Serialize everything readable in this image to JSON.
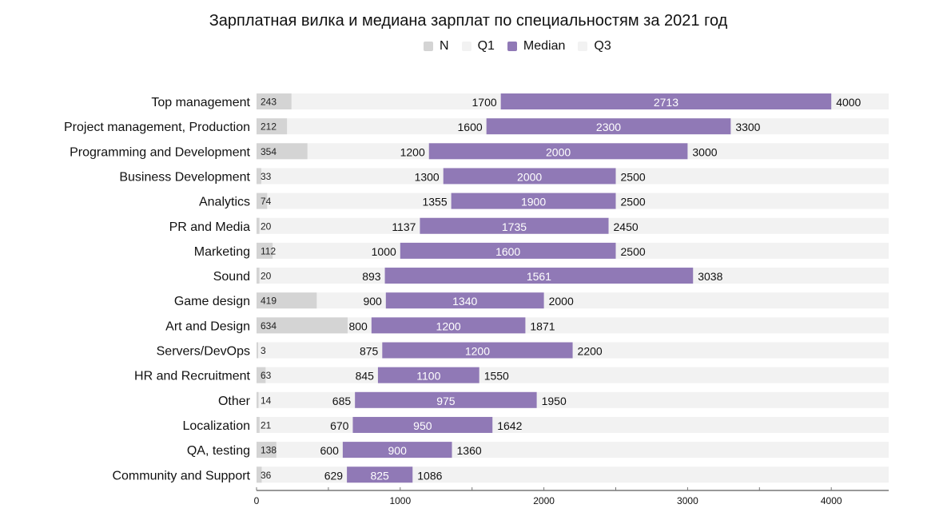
{
  "chart_data": {
    "type": "bar",
    "orientation": "horizontal",
    "title": "Зарплатная вилка и медиана зарплат по специальностям за 2021 год",
    "legend": [
      {
        "name": "N",
        "color": "#d4d4d4"
      },
      {
        "name": "Q1",
        "color": "#f2f2f2"
      },
      {
        "name": "Median",
        "color": "#9079b6"
      },
      {
        "name": "Q3",
        "color": "#f2f2f2"
      }
    ],
    "legend_position": "top-center",
    "categories": [
      "Top management",
      "Project management, Production",
      "Programming and Development",
      "Business Development",
      "Analytics",
      "PR and Media",
      "Marketing",
      "Sound",
      "Game design",
      "Art and Design",
      "Servers/DevOps",
      "HR and Recruitment",
      "Other",
      "Localization",
      "QA, testing",
      "Community and Support"
    ],
    "series": [
      {
        "name": "N",
        "values": [
          243,
          212,
          354,
          33,
          74,
          20,
          112,
          20,
          419,
          634,
          3,
          63,
          14,
          21,
          138,
          36
        ]
      },
      {
        "name": "Q1",
        "values": [
          1700,
          1600,
          1200,
          1300,
          1355,
          1137,
          1000,
          893,
          900,
          800,
          875,
          845,
          685,
          670,
          600,
          629
        ]
      },
      {
        "name": "Median",
        "values": [
          2713,
          2300,
          2000,
          2000,
          1900,
          1735,
          1600,
          1561,
          1340,
          1200,
          1200,
          1100,
          975,
          950,
          900,
          825
        ]
      },
      {
        "name": "Q3",
        "values": [
          4000,
          3300,
          3000,
          2500,
          2500,
          2450,
          2500,
          3038,
          2000,
          1871,
          2200,
          1550,
          1950,
          1642,
          1360,
          1086
        ]
      }
    ],
    "xlim": [
      0,
      4400
    ],
    "xticks": [
      0,
      1000,
      2000,
      3000,
      4000
    ],
    "xlabel": "",
    "ylabel": "",
    "colors": {
      "n_bar": "#d4d4d4",
      "background_bar": "#f2f2f2",
      "median_bar": "#9079b6",
      "text": "#111111",
      "axis": "#333333"
    }
  }
}
